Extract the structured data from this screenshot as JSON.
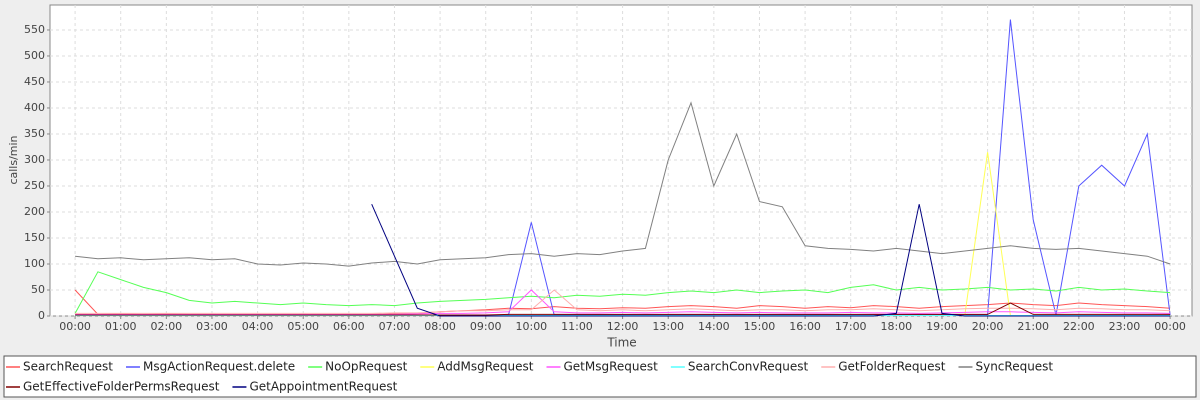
{
  "chart_data": {
    "type": "line",
    "ylabel": "calls/min",
    "xlabel": "Time",
    "xlim": [
      -0.55,
      24.48
    ],
    "ylim": [
      0,
      598
    ],
    "xticks": [
      {
        "value": 0,
        "label": "00:00"
      },
      {
        "value": 1,
        "label": "01:00"
      },
      {
        "value": 2,
        "label": "02:00"
      },
      {
        "value": 3,
        "label": "03:00"
      },
      {
        "value": 4,
        "label": "04:00"
      },
      {
        "value": 5,
        "label": "05:00"
      },
      {
        "value": 6,
        "label": "06:00"
      },
      {
        "value": 7,
        "label": "07:00"
      },
      {
        "value": 8,
        "label": "08:00"
      },
      {
        "value": 9,
        "label": "09:00"
      },
      {
        "value": 10,
        "label": "10:00"
      },
      {
        "value": 11,
        "label": "11:00"
      },
      {
        "value": 12,
        "label": "12:00"
      },
      {
        "value": 13,
        "label": "13:00"
      },
      {
        "value": 14,
        "label": "14:00"
      },
      {
        "value": 15,
        "label": "15:00"
      },
      {
        "value": 16,
        "label": "16:00"
      },
      {
        "value": 17,
        "label": "17:00"
      },
      {
        "value": 18,
        "label": "18:00"
      },
      {
        "value": 19,
        "label": "19:00"
      },
      {
        "value": 20,
        "label": "20:00"
      },
      {
        "value": 21,
        "label": "21:00"
      },
      {
        "value": 22,
        "label": "22:00"
      },
      {
        "value": 23,
        "label": "23:00"
      },
      {
        "value": 24,
        "label": "00:00"
      }
    ],
    "yticks": [
      0,
      50,
      100,
      150,
      200,
      250,
      300,
      350,
      400,
      450,
      500,
      550
    ],
    "grid": true,
    "legend": "bottom",
    "x": [
      0,
      0.5,
      1,
      1.5,
      2,
      2.5,
      3,
      3.5,
      4,
      4.5,
      5,
      5.5,
      6,
      6.5,
      7,
      7.5,
      8,
      8.5,
      9,
      9.5,
      10,
      10.5,
      11,
      11.5,
      12,
      12.5,
      13,
      13.5,
      14,
      14.5,
      15,
      15.5,
      16,
      16.5,
      17,
      17.5,
      18,
      18.5,
      19,
      19.5,
      20,
      20.5,
      21,
      21.5,
      22,
      22.5,
      23,
      23.5,
      24
    ],
    "series": [
      {
        "name": "SearchRequest",
        "color": "#ff5555",
        "values": [
          50,
          3,
          4,
          3,
          4,
          3,
          3,
          2,
          2,
          2,
          3,
          2,
          2,
          3,
          4,
          5,
          8,
          10,
          12,
          15,
          14,
          18,
          15,
          14,
          16,
          15,
          18,
          20,
          18,
          15,
          20,
          18,
          15,
          18,
          16,
          20,
          18,
          15,
          18,
          20,
          22,
          25,
          22,
          20,
          25,
          22,
          20,
          18,
          15
        ]
      },
      {
        "name": "MsgActionRequest.delete",
        "color": "#5555ff",
        "values": [
          2,
          2,
          2,
          2,
          2,
          2,
          2,
          2,
          2,
          2,
          2,
          2,
          2,
          2,
          2,
          2,
          2,
          2,
          2,
          2,
          180,
          2,
          2,
          2,
          2,
          2,
          2,
          2,
          2,
          2,
          2,
          2,
          2,
          2,
          2,
          2,
          2,
          2,
          2,
          2,
          2,
          570,
          185,
          2,
          250,
          290,
          250,
          350,
          2
        ]
      },
      {
        "name": "NoOpRequest",
        "color": "#55ff55",
        "values": [
          5,
          85,
          70,
          55,
          45,
          30,
          25,
          28,
          25,
          22,
          25,
          22,
          20,
          22,
          20,
          25,
          28,
          30,
          32,
          35,
          38,
          35,
          40,
          38,
          42,
          40,
          45,
          48,
          45,
          50,
          45,
          48,
          50,
          45,
          55,
          60,
          50,
          55,
          50,
          52,
          55,
          50,
          52,
          48,
          55,
          50,
          52,
          48,
          45
        ]
      },
      {
        "name": "AddMsgRequest",
        "color": "#ffff55",
        "values": [
          1,
          1,
          1,
          1,
          1,
          1,
          1,
          1,
          1,
          1,
          1,
          1,
          1,
          1,
          1,
          1,
          1,
          1,
          1,
          1,
          1,
          1,
          1,
          1,
          1,
          1,
          1,
          1,
          1,
          1,
          1,
          1,
          1,
          1,
          1,
          1,
          1,
          1,
          1,
          1,
          315,
          1,
          1,
          1,
          1,
          1,
          1,
          1,
          1
        ]
      },
      {
        "name": "GetMsgRequest",
        "color": "#ff55ff",
        "values": [
          3,
          3,
          3,
          3,
          3,
          3,
          3,
          3,
          3,
          3,
          3,
          3,
          3,
          3,
          3,
          4,
          5,
          5,
          6,
          8,
          50,
          8,
          6,
          6,
          7,
          6,
          7,
          8,
          7,
          6,
          7,
          6,
          6,
          6,
          7,
          6,
          6,
          5,
          6,
          7,
          8,
          8,
          7,
          6,
          8,
          7,
          6,
          6,
          5
        ]
      },
      {
        "name": "SearchConvRequest",
        "color": "#55ffff",
        "values": [
          1,
          1,
          1,
          1,
          1,
          1,
          1,
          1,
          1,
          1,
          1,
          1,
          1,
          1,
          1,
          1,
          1,
          1,
          1,
          1,
          1,
          1,
          1,
          1,
          1,
          1,
          1,
          1,
          1,
          1,
          1,
          1,
          1,
          1,
          1,
          1,
          1,
          1,
          1,
          1,
          1,
          1,
          1,
          1,
          1,
          1,
          1,
          1,
          1
        ]
      },
      {
        "name": "GetFolderRequest",
        "color": "#ffafaf",
        "values": [
          5,
          5,
          5,
          5,
          5,
          5,
          5,
          5,
          5,
          5,
          5,
          5,
          5,
          5,
          6,
          6,
          8,
          10,
          10,
          12,
          12,
          50,
          12,
          10,
          12,
          10,
          12,
          14,
          12,
          10,
          12,
          12,
          10,
          12,
          12,
          14,
          12,
          10,
          12,
          14,
          15,
          15,
          14,
          12,
          15,
          14,
          12,
          12,
          10
        ]
      },
      {
        "name": "SyncRequest",
        "color": "#808080",
        "values": [
          115,
          110,
          112,
          108,
          110,
          112,
          108,
          110,
          100,
          98,
          102,
          100,
          96,
          102,
          105,
          100,
          108,
          110,
          112,
          118,
          120,
          115,
          120,
          118,
          125,
          130,
          300,
          410,
          250,
          350,
          220,
          210,
          135,
          130,
          128,
          125,
          130,
          125,
          120,
          125,
          130,
          135,
          130,
          128,
          130,
          125,
          120,
          115,
          100
        ]
      },
      {
        "name": "GetEffectiveFolderPermsRequest",
        "color": "#800000",
        "values": [
          2,
          2,
          2,
          2,
          2,
          2,
          2,
          2,
          2,
          2,
          2,
          2,
          2,
          2,
          2,
          2,
          2,
          2,
          2,
          3,
          3,
          3,
          3,
          3,
          3,
          3,
          3,
          3,
          3,
          3,
          3,
          3,
          3,
          3,
          3,
          3,
          3,
          3,
          3,
          3,
          3,
          25,
          3,
          3,
          3,
          3,
          3,
          3,
          3
        ]
      },
      {
        "name": "GetAppointmentRequest",
        "color": "#000080",
        "values": [
          null,
          null,
          null,
          null,
          null,
          null,
          null,
          null,
          null,
          null,
          null,
          null,
          null,
          215,
          115,
          15,
          0,
          0,
          0,
          0,
          0,
          0,
          0,
          0,
          0,
          0,
          0,
          0,
          0,
          0,
          0,
          0,
          0,
          0,
          0,
          0,
          5,
          215,
          5,
          0,
          0,
          0,
          0,
          0,
          0,
          0,
          0,
          0,
          0
        ]
      }
    ]
  }
}
